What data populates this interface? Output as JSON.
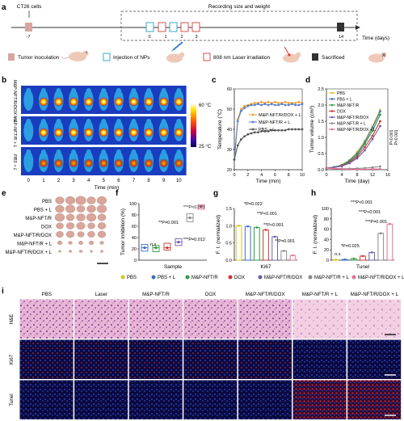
{
  "colors": {
    "PBS": "#d4c62a",
    "PBS + L": "#3a6fc4",
    "M&P-NFT/R": "#2e9e44",
    "DOX": "#c9382c",
    "M&P-NFT/R/DOX": "#6f5aa8",
    "M&P-NFT/R + L": "#8a8a8a",
    "M&P-NFT/R/DOX + L": "#e0709a",
    "inoculation": "#d9a5a0",
    "injection": "#3aa9c7",
    "laser": "#d9534f",
    "sacrificed": "#333333"
  },
  "panel_letters": {
    "a": "a",
    "b": "b",
    "c": "c",
    "d": "d",
    "e": "e",
    "f": "f",
    "g": "g",
    "h": "h",
    "i": "i"
  },
  "panel_a": {
    "cells_label": "CT26 cells",
    "recording_label": "Recording size and weight",
    "axis_label": "Time (days)",
    "days": [
      "-7",
      "0",
      "1",
      "2",
      "3",
      "14"
    ],
    "legend": {
      "inoculation": "Tumor inoculation",
      "injection": "Injection of NPs",
      "laser": "808 nm Laser irradiation",
      "sacrificed": "Sacrificed"
    }
  },
  "panel_b": {
    "rows": [
      "M&P-NFT/R/DOX + L",
      "M&P-NFT/R + L",
      "PBS + L"
    ],
    "time_ticks": [
      "0",
      "1",
      "2",
      "3",
      "4",
      "5",
      "6",
      "7",
      "8",
      "9",
      "10"
    ],
    "xlabel": "Time (min)",
    "scale_max": "60 °C",
    "scale_min": "25 °C"
  },
  "chart_data": [
    {
      "panel": "c",
      "type": "line",
      "xlabel": "Time (min)",
      "ylabel": "Temperature (°C)",
      "xlim": [
        0,
        10
      ],
      "ylim": [
        20,
        60
      ],
      "xticks": [
        0,
        2,
        4,
        6,
        8,
        10
      ],
      "yticks": [
        20,
        30,
        40,
        50,
        60
      ],
      "x": [
        0,
        0.5,
        1,
        1.5,
        2,
        2.5,
        3,
        3.5,
        4,
        4.5,
        5,
        5.5,
        6,
        6.5,
        7,
        7.5,
        8,
        8.5,
        9,
        9.5,
        10
      ],
      "series": [
        {
          "name": "M&P-NFT/R/DOX + L",
          "color": "#f0a030",
          "values": [
            25,
            45,
            50,
            51.5,
            52,
            52.5,
            53,
            53,
            53.5,
            53,
            53.5,
            53,
            53.5,
            53,
            53,
            53.5,
            53,
            53,
            53,
            53.5,
            53
          ]
        },
        {
          "name": "M&P-NFT/R + L",
          "color": "#5a7fd0",
          "values": [
            25,
            44,
            49,
            50.5,
            51.5,
            52,
            52,
            52.5,
            52,
            52.5,
            52,
            52.5,
            52,
            52,
            52.5,
            52,
            52,
            52.5,
            52,
            52,
            52.5
          ]
        },
        {
          "name": "PBS + L",
          "color": "#555555",
          "values": [
            25,
            32,
            35,
            36.5,
            37.5,
            38,
            38.5,
            38.5,
            39,
            39,
            39,
            39.5,
            39.5,
            39.5,
            39.5,
            39.5,
            40,
            40,
            40,
            40,
            40
          ]
        }
      ]
    },
    {
      "panel": "d",
      "type": "line",
      "xlabel": "Time (day)",
      "ylabel": "Tumor volume (cm³)",
      "xlim": [
        0,
        16
      ],
      "ylim": [
        0,
        2.5
      ],
      "xticks": [
        0,
        4,
        8,
        12,
        16
      ],
      "yticks": [
        0.0,
        0.5,
        1.0,
        1.5,
        2.0,
        2.5
      ],
      "x": [
        0,
        2,
        4,
        6,
        8,
        10,
        12,
        14
      ],
      "series": [
        {
          "name": "PBS",
          "color": "#d4c62a",
          "values": [
            0.05,
            0.08,
            0.15,
            0.3,
            0.55,
            0.9,
            1.35,
            1.85
          ]
        },
        {
          "name": "PBS + L",
          "color": "#3a6fc4",
          "values": [
            0.05,
            0.08,
            0.14,
            0.28,
            0.5,
            0.85,
            1.3,
            1.8
          ]
        },
        {
          "name": "M&P-NFT/R",
          "color": "#2e9e44",
          "values": [
            0.05,
            0.07,
            0.13,
            0.25,
            0.45,
            0.8,
            1.2,
            1.7
          ]
        },
        {
          "name": "DOX",
          "color": "#c9382c",
          "values": [
            0.05,
            0.07,
            0.12,
            0.22,
            0.4,
            0.7,
            1.05,
            1.5
          ]
        },
        {
          "name": "M&P-NFT/R/DOX",
          "color": "#6f5aa8",
          "values": [
            0.05,
            0.07,
            0.11,
            0.2,
            0.35,
            0.6,
            0.95,
            1.35
          ]
        },
        {
          "name": "M&P-NFT/R + L",
          "color": "#8a8a8a",
          "values": [
            0.05,
            0.04,
            0.03,
            0.03,
            0.04,
            0.05,
            0.07,
            0.1
          ]
        },
        {
          "name": "M&P-NFT/R/DOX + L",
          "color": "#e0709a",
          "values": [
            0.05,
            0.03,
            0.02,
            0.01,
            0.01,
            0.01,
            0.02,
            0.02
          ]
        }
      ],
      "annotations": [
        "P<0.001",
        "P<0.001",
        "***",
        "***"
      ]
    },
    {
      "panel": "f",
      "type": "box",
      "xlabel": "Sample",
      "ylabel": "Tumor inhibition (%)",
      "ylim": [
        0,
        100
      ],
      "yticks": [
        0,
        20,
        40,
        60,
        80,
        100
      ],
      "groups": [
        {
          "name": "PBS + L",
          "color": "#3a6fc4",
          "median": 22,
          "q1": 16,
          "q3": 28
        },
        {
          "name": "M&P-NFT/R",
          "color": "#2e9e44",
          "median": 22,
          "q1": 15,
          "q3": 26
        },
        {
          "name": "DOX",
          "color": "#c9382c",
          "median": 22,
          "q1": 18,
          "q3": 30
        },
        {
          "name": "M&P-NFT/R/DOX",
          "color": "#6f5aa8",
          "median": 32,
          "q1": 26,
          "q3": 38
        },
        {
          "name": "M&P-NFT/R + L",
          "color": "#8a8a8a",
          "median": 75,
          "q1": 68,
          "q3": 82
        },
        {
          "name": "M&P-NFT/R/DOX + L",
          "color": "#e0709a",
          "median": 95,
          "q1": 90,
          "q3": 98
        }
      ],
      "annotations": [
        "***P<0.001",
        "**P=0.001",
        "n.s",
        "***P=0.012"
      ]
    },
    {
      "panel": "g",
      "type": "bar",
      "xlabel": "Ki67",
      "ylabel": "F. I. (normalized)",
      "ylim": [
        0,
        1.5
      ],
      "yticks": [
        0.0,
        0.5,
        1.0,
        1.5
      ],
      "categories": [
        "PBS",
        "PBS + L",
        "M&P-NFT/R",
        "DOX",
        "M&P-NFT/R/DOX",
        "M&P-NFT/R + L",
        "M&P-NFT/R/DOX + L"
      ],
      "values": [
        1.0,
        0.98,
        0.95,
        0.88,
        0.68,
        0.27,
        0.14
      ],
      "annotations": [
        "*P=0.022",
        "**P<0.001",
        "**P<0.001",
        "**P=0.001"
      ]
    },
    {
      "panel": "h",
      "type": "bar",
      "xlabel": "Tunel",
      "ylabel": "F. I. (normalized)",
      "ylim": [
        0,
        100
      ],
      "yticks": [
        0,
        20,
        40,
        60,
        80,
        100
      ],
      "categories": [
        "PBS",
        "PBS + L",
        "M&P-NFT/R",
        "DOX",
        "M&P-NFT/R/DOX",
        "M&P-NFT/R + L",
        "M&P-NFT/R/DOX + L"
      ],
      "values": [
        1,
        1.5,
        3,
        8,
        15,
        52,
        70
      ],
      "annotations": [
        "***P<0.001",
        "***P<0.001",
        "***P=0.001",
        "*P=0.025",
        "n.s."
      ]
    }
  ],
  "panel_e": {
    "rows": [
      "PBS",
      "PBS + L",
      "M&P-NFT/R",
      "DOX",
      "M&P-NFT/R/DOX",
      "M&P-NFT/R + L",
      "M&P-NFT/R/DOX + L"
    ]
  },
  "legend_row": [
    {
      "name": "PBS"
    },
    {
      "name": "PBS + L"
    },
    {
      "name": "M&P-NFT/R"
    },
    {
      "name": "DOX"
    },
    {
      "name": "M&P-NFT/R/DOX"
    },
    {
      "name": "M&P-NFT/R + L"
    },
    {
      "name": "M&P-NFT/R/DOX + L"
    }
  ],
  "panel_i": {
    "columns": [
      "PBS",
      "Laser",
      "M&P-NFT/R",
      "DOX",
      "M&P-NFT/R/DOX",
      "M&P-NFT/R + L",
      "M&P-NFT/R/DOX + L"
    ],
    "rows": [
      "H&E",
      "Ki67",
      "Tunel"
    ]
  }
}
